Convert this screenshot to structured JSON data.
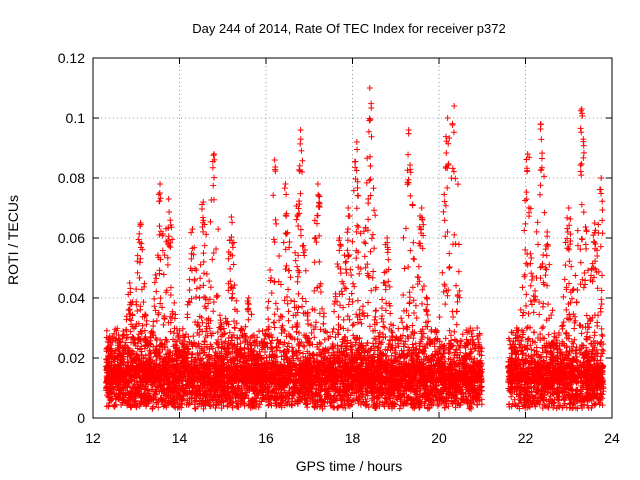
{
  "chart_data": {
    "type": "scatter",
    "title": "Day 244 of 2014, Rate Of TEC Index for receiver p372",
    "xlabel": "GPS time / hours",
    "ylabel": "ROTI / TECUs",
    "xlim": [
      12,
      24
    ],
    "ylim": [
      0,
      0.12
    ],
    "xticks": [
      12,
      14,
      16,
      18,
      20,
      22,
      24
    ],
    "xtick_labels": [
      "12",
      "14",
      "16",
      "18",
      "20",
      "22",
      "24"
    ],
    "yticks": [
      0,
      0.02,
      0.04,
      0.06,
      0.08,
      0.1,
      0.12
    ],
    "ytick_labels": [
      "0",
      "0.02",
      "0.04",
      "0.06",
      "0.08",
      "0.1",
      "0.12"
    ],
    "grid": true,
    "marker": "+",
    "color": "#ff0000",
    "segments": [
      {
        "start": 12.3,
        "end": 21.0
      },
      {
        "start": 21.6,
        "end": 23.8
      }
    ],
    "peaks": [
      {
        "x": 12.4,
        "y": 0.025
      },
      {
        "x": 12.85,
        "y": 0.045
      },
      {
        "x": 13.1,
        "y": 0.065
      },
      {
        "x": 13.55,
        "y": 0.078
      },
      {
        "x": 13.75,
        "y": 0.073
      },
      {
        "x": 14.3,
        "y": 0.063
      },
      {
        "x": 14.55,
        "y": 0.072
      },
      {
        "x": 14.8,
        "y": 0.088
      },
      {
        "x": 15.2,
        "y": 0.067
      },
      {
        "x": 15.6,
        "y": 0.04
      },
      {
        "x": 16.2,
        "y": 0.086
      },
      {
        "x": 16.45,
        "y": 0.078
      },
      {
        "x": 16.8,
        "y": 0.096
      },
      {
        "x": 17.2,
        "y": 0.078
      },
      {
        "x": 17.7,
        "y": 0.06
      },
      {
        "x": 17.9,
        "y": 0.07
      },
      {
        "x": 18.1,
        "y": 0.092
      },
      {
        "x": 18.4,
        "y": 0.11
      },
      {
        "x": 18.8,
        "y": 0.06
      },
      {
        "x": 19.3,
        "y": 0.096
      },
      {
        "x": 19.6,
        "y": 0.07
      },
      {
        "x": 20.2,
        "y": 0.1
      },
      {
        "x": 20.35,
        "y": 0.104
      },
      {
        "x": 20.65,
        "y": 0.025
      },
      {
        "x": 21.8,
        "y": 0.03
      },
      {
        "x": 22.05,
        "y": 0.088
      },
      {
        "x": 22.35,
        "y": 0.098
      },
      {
        "x": 22.5,
        "y": 0.062
      },
      {
        "x": 23.0,
        "y": 0.07
      },
      {
        "x": 23.3,
        "y": 0.103
      },
      {
        "x": 23.6,
        "y": 0.065
      },
      {
        "x": 23.75,
        "y": 0.08
      }
    ]
  }
}
